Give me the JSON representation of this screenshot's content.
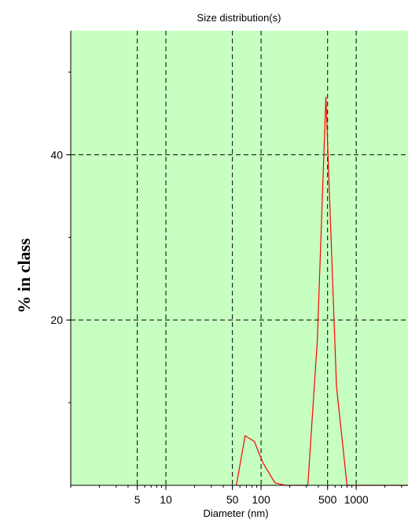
{
  "chart_data": {
    "type": "line",
    "title": "Size distribution(s)",
    "xlabel": "Diameter (nm)",
    "ylabel": "% in class",
    "xscale": "log",
    "xlim": [
      1,
      3500
    ],
    "ylim": [
      0,
      55
    ],
    "grid": true,
    "x_ticks": [
      {
        "value": 5,
        "label": "5"
      },
      {
        "value": 10,
        "label": "10"
      },
      {
        "value": 50,
        "label": "50"
      },
      {
        "value": 100,
        "label": "100"
      },
      {
        "value": 500,
        "label": "500"
      },
      {
        "value": 1000,
        "label": "1000"
      }
    ],
    "y_ticks": [
      {
        "value": 20,
        "label": "20"
      },
      {
        "value": 40,
        "label": "40"
      }
    ],
    "series": [
      {
        "color": "#ff0000",
        "x": [
          55,
          68,
          85,
          105,
          140,
          180,
          250,
          310,
          390,
          480,
          620,
          800,
          1200,
          2000,
          3500
        ],
        "y": [
          0,
          6,
          5.3,
          2.7,
          0.3,
          0,
          0,
          0,
          17.5,
          47,
          12,
          0,
          0,
          0,
          0
        ]
      }
    ],
    "colors": {
      "plot_background": "#c6ffc0",
      "grid": "#000000",
      "series": "#ff0000"
    }
  }
}
